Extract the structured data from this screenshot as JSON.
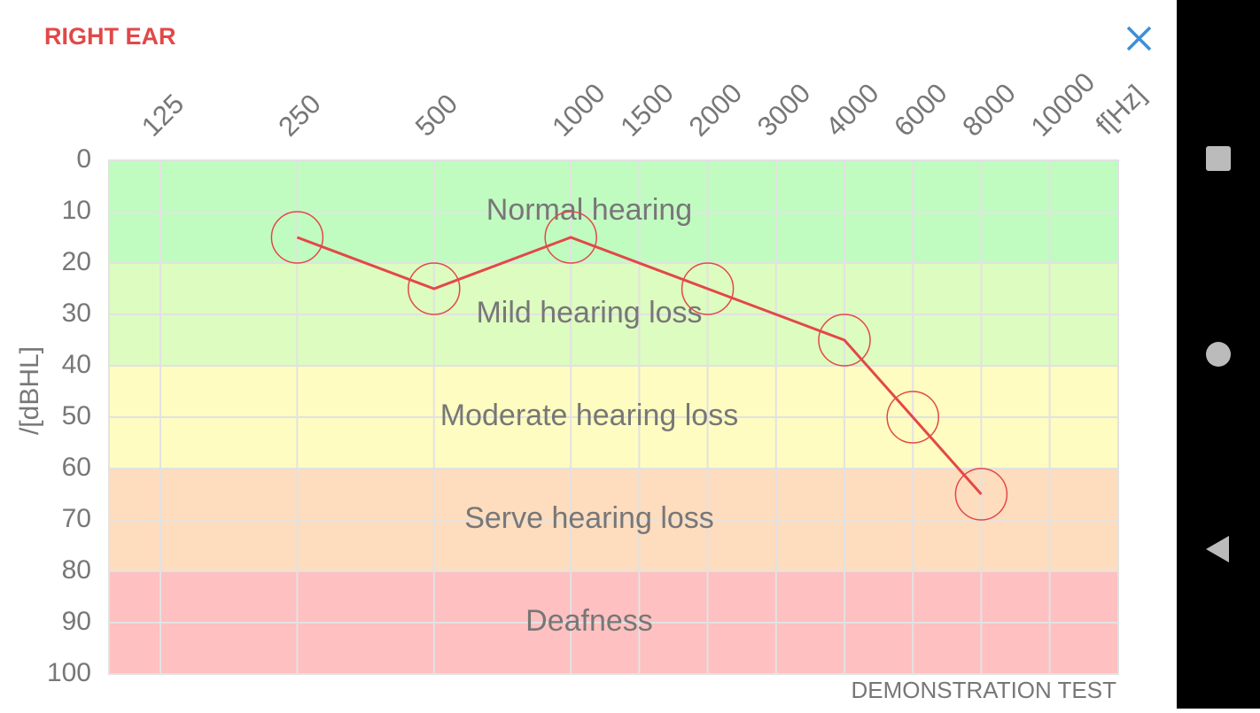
{
  "header": {
    "title": "RIGHT EAR"
  },
  "chart_data": {
    "type": "line",
    "categories": [
      "125",
      "250",
      "500",
      "1000",
      "1500",
      "2000",
      "3000",
      "4000",
      "6000",
      "8000",
      "10000"
    ],
    "x_label": "f[Hz]",
    "y_label": "/[dBHL]",
    "ylim": [
      0,
      100
    ],
    "y_inverted": true,
    "yticks": [
      0,
      10,
      20,
      30,
      40,
      50,
      60,
      70,
      80,
      90,
      100
    ],
    "grid": true,
    "zones": [
      {
        "label": "Normal hearing",
        "from": 0,
        "to": 20,
        "color": "#c0fcc0"
      },
      {
        "label": "Mild hearing loss",
        "from": 20,
        "to": 40,
        "color": "#ddfcbf"
      },
      {
        "label": "Moderate hearing loss",
        "from": 40,
        "to": 60,
        "color": "#fefcc0"
      },
      {
        "label": "Serve hearing loss",
        "from": 60,
        "to": 80,
        "color": "#fedcbe"
      },
      {
        "label": "Deafness",
        "from": 80,
        "to": 100,
        "color": "#fec0c0"
      }
    ],
    "series": [
      {
        "color": "#e24848",
        "x": [
          "250",
          "500",
          "1000",
          "2000",
          "4000",
          "6000",
          "8000"
        ],
        "values": [
          15,
          25,
          15,
          25,
          35,
          50,
          65
        ]
      }
    ]
  },
  "footer": {
    "note": "DEMONSTRATION TEST"
  }
}
